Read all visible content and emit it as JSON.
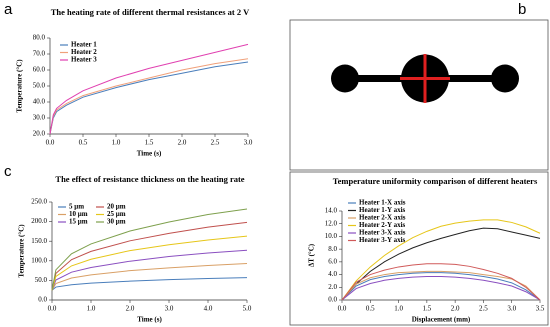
{
  "panel_labels": [
    "a",
    "b",
    "c"
  ],
  "chart_data": [
    {
      "type": "line",
      "title": "The heating rate of different thermal resistances at 2 V",
      "x_label": "Time (s)",
      "y_label": "Temperature (°C)",
      "x": [
        0,
        0.05,
        0.1,
        0.25,
        0.5,
        1,
        1.5,
        2,
        2.5,
        3
      ],
      "series": [
        {
          "name": "Heater 1",
          "color": "#4a7ebb",
          "values": [
            20,
            30,
            34,
            38,
            43,
            49,
            54,
            58,
            62,
            65
          ]
        },
        {
          "name": "Heater 2",
          "color": "#f0a07a",
          "values": [
            20,
            31,
            35,
            39,
            44,
            50,
            55,
            60,
            64,
            67
          ]
        },
        {
          "name": "Heater 3",
          "color": "#e040b0",
          "values": [
            20,
            32,
            36,
            41,
            47,
            55,
            61,
            66,
            71,
            76
          ]
        }
      ],
      "xlim": [
        0,
        3
      ],
      "xticks": [
        {
          "value": 0,
          "label": "0.0"
        },
        0.5,
        {
          "value": 1,
          "label": "1.0"
        },
        1.5,
        {
          "value": 2,
          "label": "2.0"
        },
        2.5,
        {
          "value": 3,
          "label": "3.0"
        }
      ],
      "ylim": [
        20,
        80
      ],
      "yticks": [
        {
          "value": 20,
          "label": "20.0"
        },
        {
          "value": 30,
          "label": "30.0"
        },
        {
          "value": 40,
          "label": "40.0"
        },
        {
          "value": 50,
          "label": "50.0"
        },
        {
          "value": 60,
          "label": "60.0"
        },
        {
          "value": 70,
          "label": "70.0"
        },
        {
          "value": 80,
          "label": "80.0"
        }
      ],
      "grid": false
    },
    {
      "type": "line",
      "title": "The effect of resistance thickness on the heating rate",
      "x_label": "Time (s)",
      "y_label": "Temperature (°C)",
      "x": [
        0,
        0.1,
        0.5,
        1,
        2,
        3,
        4,
        5
      ],
      "series": [
        {
          "name": "5 μm",
          "color": "#4a7ebb",
          "values": [
            25,
            33,
            39,
            43,
            48,
            52,
            55,
            57
          ]
        },
        {
          "name": "10 μm",
          "color": "#d9a066",
          "values": [
            25,
            42,
            56,
            64,
            75,
            82,
            88,
            93
          ]
        },
        {
          "name": "15 μm",
          "color": "#8a4fc0",
          "values": [
            25,
            51,
            71,
            83,
            99,
            111,
            120,
            127
          ]
        },
        {
          "name": "20 μm",
          "color": "#c0504d",
          "values": [
            25,
            68,
            103,
            124,
            151,
            170,
            186,
            198
          ]
        },
        {
          "name": "25 μm",
          "color": "#e6c619",
          "values": [
            25,
            60,
            87,
            104,
            126,
            141,
            153,
            163
          ]
        },
        {
          "name": "30 μm",
          "color": "#7ea04d",
          "values": [
            25,
            77,
            118,
            143,
            176,
            199,
            218,
            232
          ]
        }
      ],
      "xlim": [
        0,
        5
      ],
      "xticks": [
        {
          "value": 0,
          "label": "0.0"
        },
        {
          "value": 1,
          "label": "1.0"
        },
        {
          "value": 2,
          "label": "2.0"
        },
        {
          "value": 3,
          "label": "3.0"
        },
        {
          "value": 4,
          "label": "4.0"
        },
        {
          "value": 5,
          "label": "5.0"
        }
      ],
      "ylim": [
        0,
        250
      ],
      "yticks": [
        {
          "value": 0,
          "label": "0.0"
        },
        {
          "value": 50,
          "label": "50.0"
        },
        {
          "value": 100,
          "label": "100.0"
        },
        {
          "value": 150,
          "label": "150.0"
        },
        {
          "value": 200,
          "label": "200.0"
        },
        {
          "value": 250,
          "label": "250.0"
        }
      ],
      "grid": false
    },
    {
      "type": "line",
      "title": "Temperature uniformity comparison of different heaters",
      "x_label": "Displacement (mm)",
      "y_label": "ΔT (°C)",
      "x": [
        0,
        0.25,
        0.5,
        0.75,
        1,
        1.25,
        1.5,
        1.75,
        2,
        2.25,
        2.5,
        2.75,
        3,
        3.25,
        3.5
      ],
      "series": [
        {
          "name": "Heater 1-X axis",
          "color": "#4a7ebb",
          "values": [
            0,
            2.2,
            3.2,
            3.7,
            4,
            4.2,
            4.3,
            4.3,
            4.2,
            4,
            3.7,
            3.3,
            2.7,
            1.6,
            0
          ]
        },
        {
          "name": "Heater 1-Y axis",
          "color": "#222222",
          "values": [
            0,
            2.5,
            4.5,
            6,
            7.2,
            8.2,
            9,
            9.7,
            10.3,
            10.9,
            11.3,
            11.2,
            10.7,
            10.2,
            9.7
          ]
        },
        {
          "name": "Heater 2-X axis",
          "color": "#d9a066",
          "values": [
            0,
            2.5,
            3.5,
            4,
            4.3,
            4.4,
            4.5,
            4.5,
            4.4,
            4.3,
            4,
            3.7,
            3.3,
            2.2,
            0
          ]
        },
        {
          "name": "Heater 2-Y axis",
          "color": "#e6c619",
          "values": [
            0,
            3,
            5.2,
            7,
            8.5,
            9.8,
            10.8,
            11.6,
            12.1,
            12.4,
            12.6,
            12.6,
            12.2,
            11.5,
            10.5
          ]
        },
        {
          "name": "Heater 3-X axis",
          "color": "#8a4fc0",
          "values": [
            0,
            1.8,
            2.6,
            3.1,
            3.4,
            3.6,
            3.7,
            3.7,
            3.6,
            3.4,
            3.1,
            2.7,
            2.2,
            1.3,
            0
          ]
        },
        {
          "name": "Heater 3-Y axis",
          "color": "#d05a5a",
          "values": [
            0,
            2.8,
            4,
            4.7,
            5.2,
            5.5,
            5.7,
            5.7,
            5.6,
            5.3,
            4.8,
            4.2,
            3.4,
            2,
            0
          ]
        }
      ],
      "xlim": [
        0,
        3.5
      ],
      "xticks": [
        {
          "value": 0,
          "label": "0.0"
        },
        0.5,
        {
          "value": 1,
          "label": "1.0"
        },
        1.5,
        {
          "value": 2,
          "label": "2.0"
        },
        2.5,
        {
          "value": 3,
          "label": "3.0"
        },
        3.5
      ],
      "ylim": [
        0,
        14
      ],
      "yticks": [
        {
          "value": 0,
          "label": "0.0"
        },
        {
          "value": 2,
          "label": "2.0"
        },
        {
          "value": 4,
          "label": "4.0"
        },
        {
          "value": 6,
          "label": "6.0"
        },
        {
          "value": 8,
          "label": "8.0"
        },
        {
          "value": 10,
          "label": "10.0"
        },
        {
          "value": 12,
          "label": "12.0"
        },
        {
          "value": 14,
          "label": "14.0"
        }
      ],
      "grid": false
    }
  ]
}
